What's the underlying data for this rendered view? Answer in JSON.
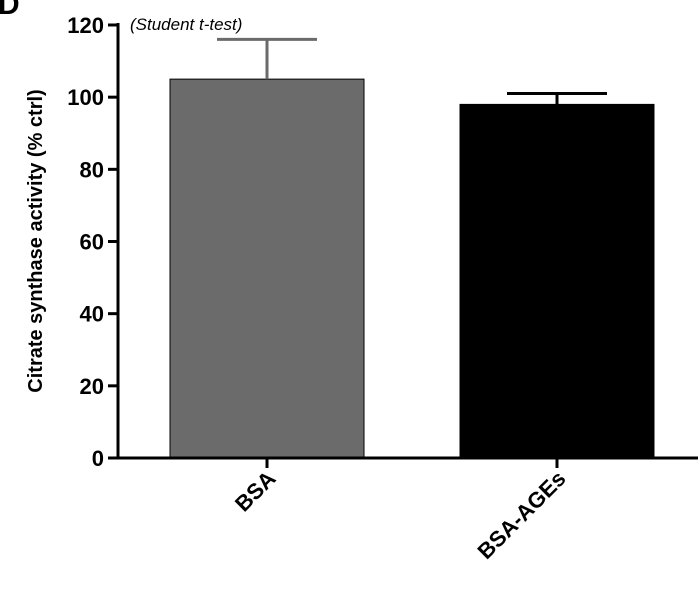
{
  "panel_label": "D",
  "chart_data": {
    "type": "bar",
    "categories": [
      "BSA",
      "BSA-AGEs"
    ],
    "values": [
      105,
      98
    ],
    "errors": [
      11,
      3
    ],
    "ylabel": "Citrate synthase activity (% ctrl)",
    "xlabel": "",
    "ylim": [
      0,
      120
    ],
    "yticks": [
      "0",
      "20",
      "40",
      "60",
      "80",
      "100",
      "120"
    ],
    "annotation": "(Student t-test)",
    "colors": [
      "#6b6b6b",
      "#000000"
    ],
    "grid": false,
    "legend": "none"
  }
}
